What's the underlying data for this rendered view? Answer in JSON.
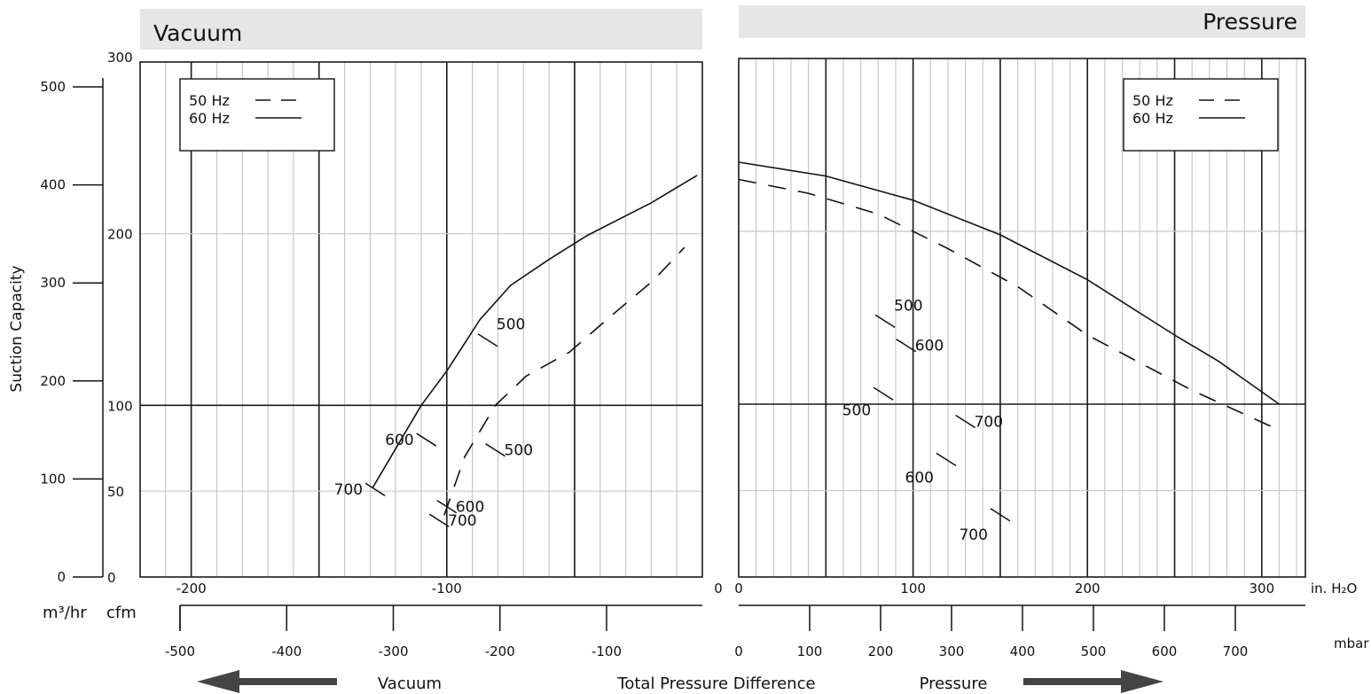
{
  "chart_data": {
    "type": "line",
    "ylabel": "Suction Capacity",
    "units": {
      "flow_metric": "m³/hr",
      "flow_imperial": "cfm",
      "pressure_inh2o": "in. H₂O",
      "pressure_mbar": "mbar"
    },
    "footer": {
      "vacuum": "Vacuum",
      "total": "Total Pressure Difference",
      "pressure": "Pressure"
    },
    "panels": [
      {
        "id": "vacuum",
        "title": "Vacuum",
        "xlim": [
          -220,
          0
        ],
        "ylim": [
          0,
          300
        ],
        "legend": {
          "position": "top-left",
          "entries": [
            {
              "label": "50 Hz",
              "style": "dashed"
            },
            {
              "label": "60 Hz",
              "style": "solid"
            }
          ]
        },
        "x_ticks_inh2o": [
          -200,
          -100
        ],
        "x_ticks_mbar": [
          -500,
          -400,
          -300,
          -200,
          -100
        ],
        "y_ticks_cfm": [
          0,
          50,
          100,
          200,
          300
        ],
        "y_ticks_m3hr": [
          0,
          100,
          200,
          300,
          400,
          500
        ],
        "series": [
          {
            "name": "60 Hz",
            "style": "solid",
            "x": [
              -129,
              -110,
              -100,
              -87,
              -75,
              -60,
              -45,
              -20,
              -2
            ],
            "y": [
              52,
              100,
              120,
              150,
              170,
              185,
              199,
              218,
              234
            ]
          },
          {
            "name": "50 Hz",
            "style": "dashed",
            "x": [
              -101,
              -93,
              -81,
              -69,
              -52,
              -35,
              -19,
              -7
            ],
            "y": [
              36,
              70,
              100,
              117,
              131,
              153,
              173,
              192
            ]
          }
        ],
        "annotations": [
          {
            "label": "500",
            "x": -84,
            "y": 138
          },
          {
            "label": "600",
            "x": -108,
            "y": 80
          },
          {
            "label": "700",
            "x": -128,
            "y": 51
          },
          {
            "label": "500",
            "x": -81,
            "y": 74
          },
          {
            "label": "600",
            "x": -100,
            "y": 41
          },
          {
            "label": "700",
            "x": -103,
            "y": 33
          }
        ]
      },
      {
        "id": "pressure",
        "title": "Pressure",
        "xlim": [
          0,
          325
        ],
        "ylim": [
          0,
          300
        ],
        "legend": {
          "position": "top-right",
          "entries": [
            {
              "label": "50 Hz",
              "style": "dashed"
            },
            {
              "label": "60 Hz",
              "style": "solid"
            }
          ]
        },
        "x_ticks_inh2o": [
          0,
          100,
          200,
          300
        ],
        "x_ticks_mbar": [
          0,
          100,
          200,
          300,
          400,
          500,
          600,
          700
        ],
        "series": [
          {
            "name": "60 Hz",
            "style": "solid",
            "x": [
              0,
              50,
              100,
              150,
              200,
              250,
              275,
              310
            ],
            "y": [
              240,
              232,
              218,
              198,
              172,
              140,
              125,
              100
            ]
          },
          {
            "name": "50 Hz",
            "style": "dashed",
            "x": [
              0,
              40,
              80,
              120,
              160,
              200,
              260,
              310
            ],
            "y": [
              230,
              222,
              210,
              190,
              168,
              140,
              108,
              85
            ]
          }
        ],
        "annotations": [
          {
            "label": "500",
            "x": 84,
            "y": 148
          },
          {
            "label": "600",
            "x": 96,
            "y": 134
          },
          {
            "label": "700",
            "x": 130,
            "y": 90
          },
          {
            "label": "500",
            "x": 83,
            "y": 106
          },
          {
            "label": "600",
            "x": 119,
            "y": 68
          },
          {
            "label": "700",
            "x": 150,
            "y": 36
          }
        ]
      }
    ]
  }
}
